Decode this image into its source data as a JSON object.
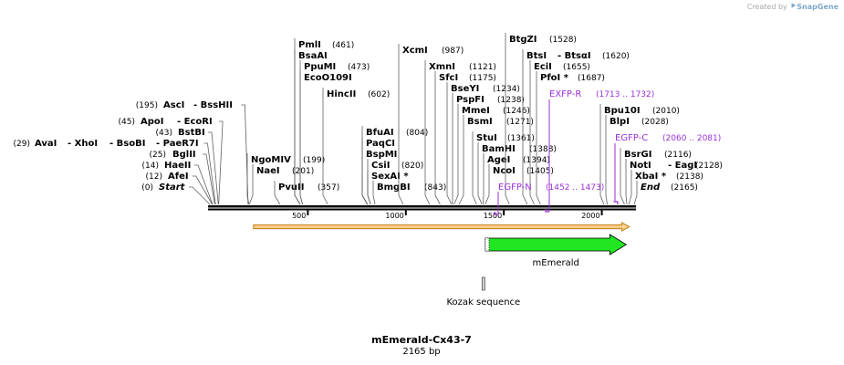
{
  "credit": {
    "prefix": "Created by",
    "brand": "SnapGene",
    "logo_icon": "snapgene-logo-icon"
  },
  "plasmid": {
    "name": "mEmerald-Cx43-7",
    "length_label": "2165 bp",
    "length": 2165
  },
  "colors": {
    "line": "#606060",
    "site_text": "#000000",
    "primer": "#9b30d9",
    "feature_fill": "#21e621",
    "orf_fill": "#fbd48f",
    "orf_stroke": "#c88b2c",
    "backbone": "#000000"
  },
  "ruler_ticks": [
    "500",
    "1000",
    "1500",
    "2000"
  ],
  "cut_sites": [
    {
      "name": "Start",
      "pos": 0,
      "pos_label": "(0)",
      "italic": true,
      "label_side": "left"
    },
    {
      "name": "AfeI",
      "pos": 12,
      "pos_label": "(12)",
      "label_side": "left"
    },
    {
      "name": "HaeII",
      "pos": 14,
      "pos_label": "(14)",
      "label_side": "left"
    },
    {
      "name": "BglII",
      "pos": 25,
      "pos_label": "(25)",
      "label_side": "left"
    },
    {
      "name": "AvaI",
      "pos": 29,
      "pos_label": "(29)",
      "label_side": "left",
      "extra": [
        "XhoI",
        "BsoBI",
        "PaeR7I"
      ]
    },
    {
      "name": "BstBI",
      "pos": 43,
      "pos_label": "(43)",
      "label_side": "left"
    },
    {
      "name": "ApoI",
      "pos": 45,
      "pos_label": "(45)",
      "label_side": "left",
      "extra": [
        "EcoRI"
      ]
    },
    {
      "name": "AscI",
      "pos": 195,
      "pos_label": "(195)",
      "label_side": "left",
      "extra": [
        "BssHII"
      ]
    },
    {
      "name": "NgoMIV",
      "pos": 199,
      "pos_label": "(199)",
      "label_side": "right"
    },
    {
      "name": "NaeI",
      "pos": 201,
      "pos_label": "(201)",
      "label_side": "right"
    },
    {
      "name": "PvuII",
      "pos": 357,
      "pos_label": "(357)",
      "label_side": "right"
    },
    {
      "name": "PmlI",
      "pos": 461,
      "pos_label": "(461)",
      "label_side": "right"
    },
    {
      "name": "BsaAI",
      "pos": 461,
      "pos_label": "",
      "label_side": "right"
    },
    {
      "name": "PpuMI",
      "pos": 473,
      "pos_label": "(473)",
      "label_side": "right"
    },
    {
      "name": "EcoO109I",
      "pos": 473,
      "pos_label": "",
      "label_side": "right"
    },
    {
      "name": "HincII",
      "pos": 602,
      "pos_label": "(602)",
      "label_side": "right"
    },
    {
      "name": "BfuAI",
      "pos": 804,
      "pos_label": "(804)",
      "label_side": "right"
    },
    {
      "name": "PaqCI",
      "pos": 804,
      "pos_label": "",
      "label_side": "right"
    },
    {
      "name": "BspMI",
      "pos": 804,
      "pos_label": "",
      "label_side": "right"
    },
    {
      "name": "CsiI",
      "pos": 820,
      "pos_label": "(820)",
      "label_side": "right"
    },
    {
      "name": "SexAI *",
      "pos": 820,
      "pos_label": "",
      "label_side": "right"
    },
    {
      "name": "BmgBI",
      "pos": 843,
      "pos_label": "(843)",
      "label_side": "right"
    },
    {
      "name": "XcmI",
      "pos": 987,
      "pos_label": "(987)",
      "label_side": "right"
    },
    {
      "name": "XmnI",
      "pos": 1121,
      "pos_label": "(1121)",
      "label_side": "right"
    },
    {
      "name": "SfcI",
      "pos": 1175,
      "pos_label": "(1175)",
      "label_side": "right"
    },
    {
      "name": "BseYI",
      "pos": 1234,
      "pos_label": "(1234)",
      "label_side": "right"
    },
    {
      "name": "PspFI",
      "pos": 1238,
      "pos_label": "(1238)",
      "label_side": "right"
    },
    {
      "name": "MmeI",
      "pos": 1246,
      "pos_label": "(1246)",
      "label_side": "right"
    },
    {
      "name": "BsmI",
      "pos": 1271,
      "pos_label": "(1271)",
      "label_side": "right"
    },
    {
      "name": "StuI",
      "pos": 1361,
      "pos_label": "(1361)",
      "label_side": "right"
    },
    {
      "name": "BamHI",
      "pos": 1388,
      "pos_label": "(1388)",
      "label_side": "right"
    },
    {
      "name": "AgeI",
      "pos": 1394,
      "pos_label": "(1394)",
      "label_side": "right"
    },
    {
      "name": "NcoI",
      "pos": 1405,
      "pos_label": "(1405)",
      "label_side": "right"
    },
    {
      "name": "BtgZI",
      "pos": 1528,
      "pos_label": "(1528)",
      "label_side": "right"
    },
    {
      "name": "BtsI",
      "pos": 1620,
      "pos_label": "(1620)",
      "label_side": "right",
      "extra": [
        "BtsαI"
      ]
    },
    {
      "name": "EciI",
      "pos": 1655,
      "pos_label": "(1655)",
      "label_side": "right"
    },
    {
      "name": "PfoI *",
      "pos": 1687,
      "pos_label": "(1687)",
      "label_side": "right"
    },
    {
      "name": "Bpu10I",
      "pos": 2010,
      "pos_label": "(2010)",
      "label_side": "right"
    },
    {
      "name": "BlpI",
      "pos": 2028,
      "pos_label": "(2028)",
      "label_side": "right"
    },
    {
      "name": "BsrGI",
      "pos": 2116,
      "pos_label": "(2116)",
      "label_side": "right"
    },
    {
      "name": "NotI",
      "pos": 2128,
      "pos_label": "(2128)",
      "label_side": "right",
      "extra": [
        "EagI"
      ]
    },
    {
      "name": "XbaI *",
      "pos": 2138,
      "pos_label": "(2138)",
      "label_side": "right"
    },
    {
      "name": "End",
      "pos": 2165,
      "pos_label": "(2165)",
      "italic": true,
      "label_side": "right"
    }
  ],
  "primers": [
    {
      "name": "EXFP-R",
      "range": "(1713 .. 1732)",
      "start": 1713,
      "end": 1732,
      "direction": "reverse"
    },
    {
      "name": "EGFP-C",
      "range": "(2060 .. 2081)",
      "start": 2060,
      "end": 2081,
      "direction": "forward"
    },
    {
      "name": "EGFP-N",
      "range": "(1452 .. 1473)",
      "start": 1452,
      "end": 1473,
      "direction": "reverse"
    }
  ],
  "features": [
    {
      "name": "mEmerald",
      "start": 1406,
      "end": 2125,
      "type": "cds",
      "direction": "forward"
    },
    {
      "name": "Kozak sequence",
      "start": 1396,
      "end": 1405,
      "type": "misc"
    }
  ],
  "orfs": [
    {
      "start": 223,
      "end": 2140,
      "direction": "forward"
    }
  ]
}
